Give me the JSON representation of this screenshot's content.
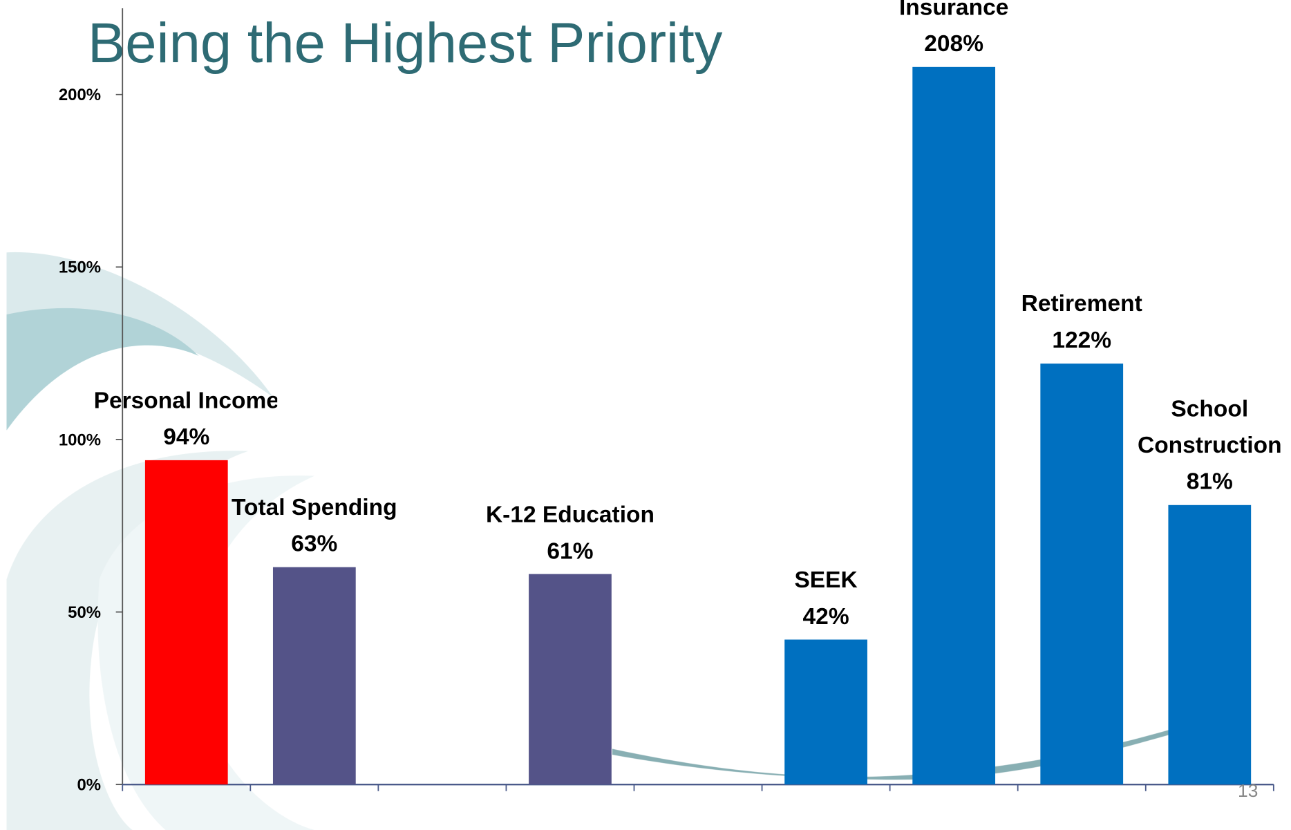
{
  "chart_data": {
    "type": "bar",
    "title": "Being the Highest Priority",
    "categories": [
      "Personal Income",
      "Total Spending",
      null,
      "K-12 Education",
      null,
      "SEEK",
      "Insurance",
      "Retirement",
      "School Construction"
    ],
    "values": [
      94,
      63,
      null,
      61,
      null,
      42,
      208,
      122,
      81
    ],
    "value_labels": [
      "94%",
      "63%",
      null,
      "61%",
      null,
      "42%",
      "208%",
      "122%",
      "81%"
    ],
    "colors": [
      "#ff0000",
      "#545388",
      null,
      "#545388",
      null,
      "#0070c0",
      "#0070c0",
      "#0070c0",
      "#0070c0"
    ],
    "ylim": [
      0,
      225
    ],
    "yticks": [
      {
        "value": 0,
        "label": "0%"
      },
      {
        "value": 50,
        "label": "50%"
      },
      {
        "value": 100,
        "label": "100%"
      },
      {
        "value": 150,
        "label": "150%"
      },
      {
        "value": 200,
        "label": "200%"
      }
    ],
    "page_number": "13"
  }
}
